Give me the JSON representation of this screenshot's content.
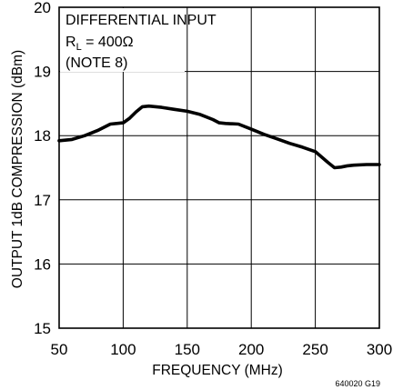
{
  "chart_data": {
    "type": "line",
    "xlabel": "FREQUENCY (MHz)",
    "ylabel": "OUTPUT 1dB COMPRESSION (dBm)",
    "xlim": [
      50,
      300
    ],
    "ylim": [
      15,
      20
    ],
    "xticks": [
      "50",
      "100",
      "150",
      "200",
      "250",
      "300"
    ],
    "yticks": [
      "15",
      "16",
      "17",
      "18",
      "19",
      "20"
    ],
    "grid": true,
    "annotation": {
      "line1": "DIFFERENTIAL INPUT",
      "rl_main": "R",
      "rl_sub": "L",
      "rl_rest": " = 400Ω",
      "line3": "(NOTE 8)"
    },
    "figure_id": "640020 G19",
    "series": [
      {
        "x": [
          50,
          60,
          70,
          80,
          90,
          100,
          105,
          110,
          115,
          120,
          130,
          140,
          150,
          160,
          170,
          175,
          180,
          190,
          200,
          210,
          220,
          230,
          240,
          250,
          260,
          265,
          270,
          275,
          280,
          290,
          300
        ],
        "y": [
          17.92,
          17.94,
          18.0,
          18.08,
          18.18,
          18.2,
          18.27,
          18.37,
          18.45,
          18.46,
          18.44,
          18.41,
          18.38,
          18.33,
          18.25,
          18.2,
          18.19,
          18.18,
          18.1,
          18.02,
          17.95,
          17.88,
          17.82,
          17.75,
          17.58,
          17.5,
          17.51,
          17.53,
          17.54,
          17.55,
          17.55
        ]
      }
    ]
  }
}
